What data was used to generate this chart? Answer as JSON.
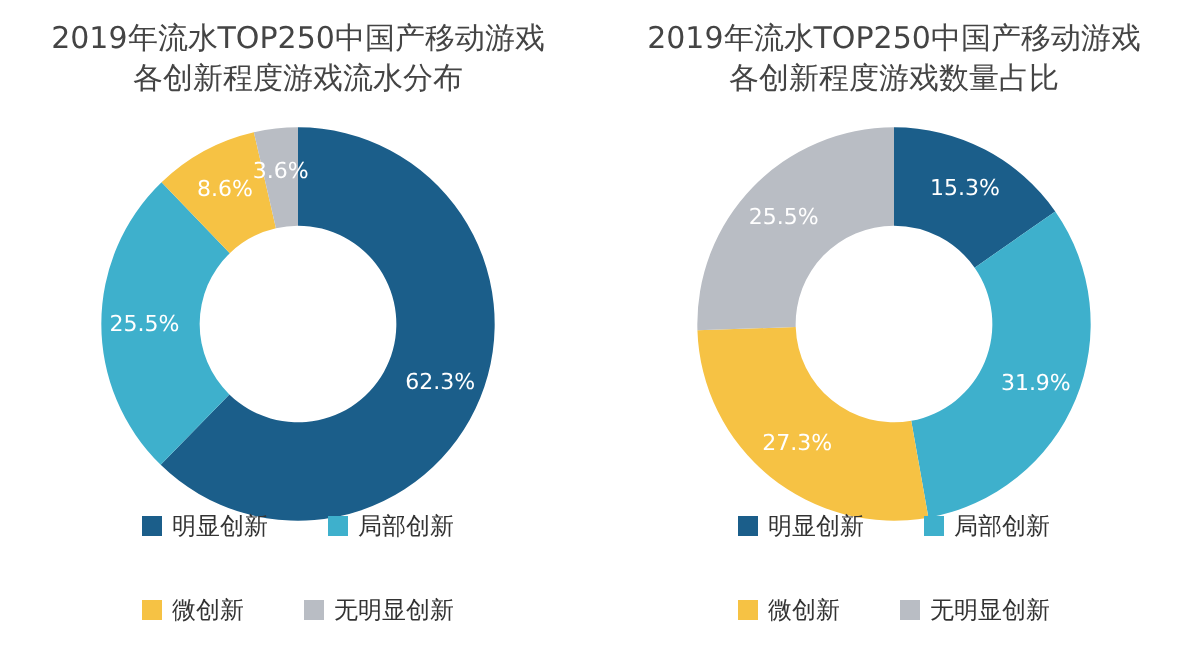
{
  "chart_data": [
    {
      "type": "donut",
      "title": "2019年流水TOP250中国产移动游戏各创新程度游戏流水分布",
      "categories": [
        "明显创新",
        "局部创新",
        "微创新",
        "无明显创新"
      ],
      "values": [
        62.3,
        25.5,
        8.6,
        3.6
      ],
      "value_labels": [
        "62.3%",
        "25.5%",
        "8.6%",
        "3.6%"
      ],
      "colors": [
        "#1b5e8a",
        "#3eb0cc",
        "#f6c244",
        "#b9bdc4"
      ],
      "legend": "bottom"
    },
    {
      "type": "donut",
      "title": "2019年流水TOP250中国产移动游戏各创新程度游戏数量占比",
      "categories": [
        "明显创新",
        "局部创新",
        "微创新",
        "无明显创新"
      ],
      "values": [
        15.3,
        31.9,
        27.3,
        25.5
      ],
      "value_labels": [
        "15.3%",
        "31.9%",
        "27.3%",
        "25.5%"
      ],
      "colors": [
        "#1b5e8a",
        "#3eb0cc",
        "#f6c244",
        "#b9bdc4"
      ],
      "legend": "bottom"
    }
  ]
}
